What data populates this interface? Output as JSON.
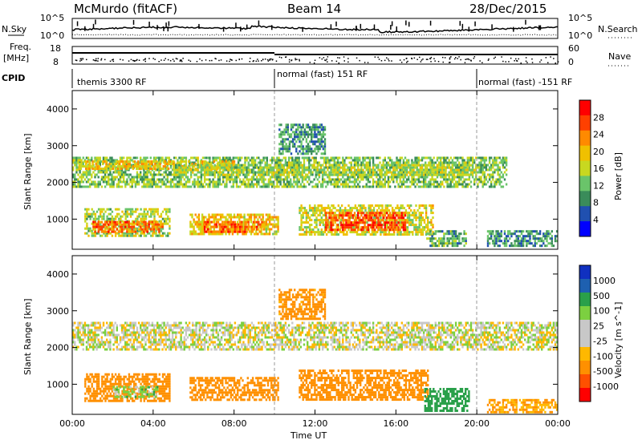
{
  "header": {
    "station": "McMurdo (fitACF)",
    "beam": "Beam 14",
    "date": "28/Dec/2015"
  },
  "noise_panel": {
    "left_label": "N.Sky",
    "right_label": "N.Search",
    "left_ticks": [
      "10^5",
      "10^0"
    ],
    "right_ticks": [
      "10^5",
      "10^0"
    ]
  },
  "freq_panel": {
    "left_label_top": "Freq.",
    "left_label_unit": "[MHz]",
    "right_label": "Nave",
    "left_ticks": [
      "18",
      "8"
    ],
    "right_ticks": [
      "60",
      "0"
    ]
  },
  "cpid_panel": {
    "label": "CPID",
    "segments": [
      {
        "name": "themis 3300 RF",
        "start_hour": 0
      },
      {
        "name": "normal (fast) 151 RF",
        "start_hour": 10
      },
      {
        "name": "normal (fast) -151 RF",
        "start_hour": 20
      }
    ]
  },
  "colors": {
    "power_scale": [
      "#0000ff",
      "#2050b0",
      "#3a8c5a",
      "#6ac46a",
      "#c8d820",
      "#f0c000",
      "#ff8a00",
      "#ff4000",
      "#ff0000"
    ],
    "velocity_scale": [
      "#ff0000",
      "#ff5000",
      "#ff9000",
      "#ffb800",
      "#c8c8c8",
      "#c8c8c8",
      "#7cd040",
      "#2aa04a",
      "#1e60b0",
      "#1030c0"
    ]
  },
  "chart_data": [
    {
      "type": "heatmap",
      "title": "",
      "xlabel": "Time UT",
      "ylabel": "Slant Range [km]",
      "colorbar_label": "Power [dB]",
      "colorbar_ticks": [
        "28",
        "24",
        "20",
        "16",
        "12",
        "8",
        "4"
      ],
      "colorbar_range": [
        0,
        30
      ],
      "x_ticks": [
        "00:00",
        "04:00",
        "08:00",
        "12:00",
        "16:00",
        "20:00",
        "00:00"
      ],
      "x_range_hours": [
        0,
        24
      ],
      "y_ticks": [
        "4000",
        "3000",
        "2000",
        "1000"
      ],
      "y_range_km": [
        180,
        4500
      ],
      "regions": [
        {
          "t0": 0.0,
          "t1": 21.5,
          "r0": 1900,
          "r1": 2700,
          "level": 12
        },
        {
          "t0": 0.3,
          "t1": 8.0,
          "r0": 2350,
          "r1": 2600,
          "level": 18
        },
        {
          "t0": 5.0,
          "t1": 20.0,
          "r0": 2200,
          "r1": 2500,
          "level": 14
        },
        {
          "t0": 10.2,
          "t1": 12.5,
          "r0": 2800,
          "r1": 3600,
          "level": 8
        },
        {
          "t0": 0.6,
          "t1": 4.8,
          "r0": 550,
          "r1": 1300,
          "level": 14
        },
        {
          "t0": 1.0,
          "t1": 4.5,
          "r0": 650,
          "r1": 950,
          "level": 24
        },
        {
          "t0": 5.8,
          "t1": 10.2,
          "r0": 600,
          "r1": 1150,
          "level": 18
        },
        {
          "t0": 6.5,
          "t1": 9.5,
          "r0": 650,
          "r1": 950,
          "level": 25
        },
        {
          "t0": 11.2,
          "t1": 17.8,
          "r0": 600,
          "r1": 1400,
          "level": 16
        },
        {
          "t0": 12.5,
          "t1": 16.5,
          "r0": 700,
          "r1": 1200,
          "level": 26
        },
        {
          "t0": 17.5,
          "t1": 19.5,
          "r0": 250,
          "r1": 700,
          "level": 10
        },
        {
          "t0": 20.5,
          "t1": 24.0,
          "r0": 250,
          "r1": 700,
          "level": 8
        }
      ]
    },
    {
      "type": "heatmap",
      "title": "",
      "xlabel": "Time UT",
      "ylabel": "Slant Range [km]",
      "colorbar_label": "Velocity [m s^-1]",
      "colorbar_ticks": [
        "1000",
        "500",
        "100",
        "25",
        "-25",
        "-100",
        "-500",
        "-1000"
      ],
      "x_ticks": [
        "00:00",
        "04:00",
        "08:00",
        "12:00",
        "16:00",
        "20:00",
        "00:00"
      ],
      "x_range_hours": [
        0,
        24
      ],
      "y_ticks": [
        "4000",
        "3000",
        "2000",
        "1000"
      ],
      "y_range_km": [
        180,
        4500
      ],
      "regions": [
        {
          "t0": 0.0,
          "t1": 24.0,
          "r0": 1950,
          "r1": 2700,
          "velocity": 0
        },
        {
          "t0": 10.2,
          "t1": 12.5,
          "r0": 2800,
          "r1": 3600,
          "velocity": -150
        },
        {
          "t0": 0.6,
          "t1": 4.8,
          "r0": 550,
          "r1": 1300,
          "velocity": -200
        },
        {
          "t0": 2.0,
          "t1": 4.2,
          "r0": 650,
          "r1": 950,
          "velocity": 60
        },
        {
          "t0": 5.8,
          "t1": 10.2,
          "r0": 600,
          "r1": 1200,
          "velocity": -250
        },
        {
          "t0": 11.2,
          "t1": 17.6,
          "r0": 600,
          "r1": 1400,
          "velocity": -300
        },
        {
          "t0": 17.4,
          "t1": 19.6,
          "r0": 250,
          "r1": 900,
          "velocity": 300
        },
        {
          "t0": 20.5,
          "t1": 24.0,
          "r0": 250,
          "r1": 600,
          "velocity": -100
        }
      ]
    }
  ]
}
